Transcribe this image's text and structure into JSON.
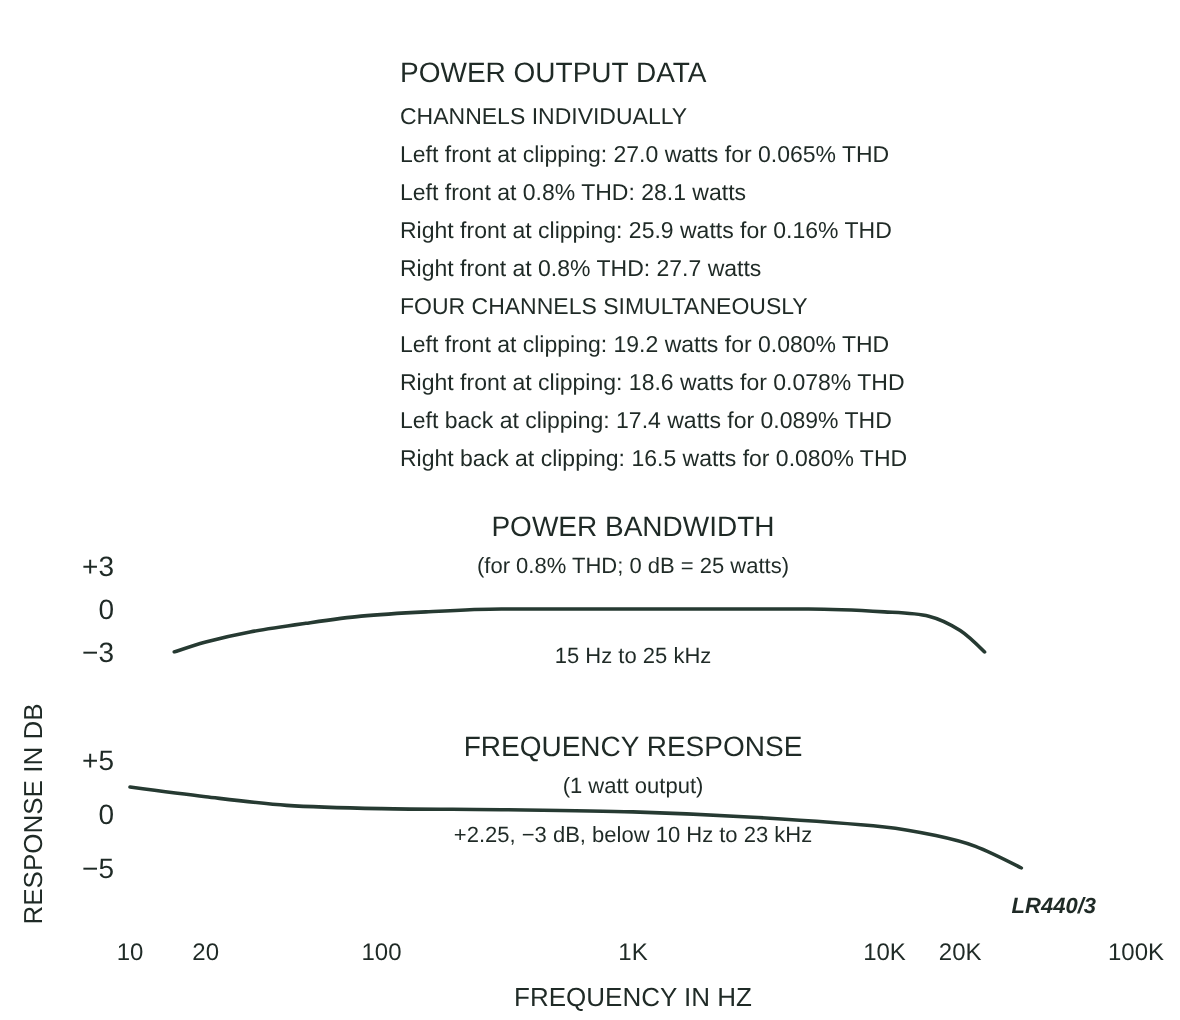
{
  "chart_data": [
    {
      "type": "other",
      "title": "POWER OUTPUT DATA",
      "annotations": [
        "CHANNELS INDIVIDUALLY",
        "Left front at clipping: 27.0 watts for 0.065% THD",
        "Left front at 0.8% THD: 28.1 watts",
        "Right front at clipping: 25.9 watts for 0.16% THD",
        "Right front at 0.8% THD: 27.7 watts",
        "FOUR CHANNELS SIMULTANEOUSLY",
        "Left front at clipping: 19.2 watts for 0.080% THD",
        "Right front at clipping: 18.6 watts for 0.078% THD",
        "Left back at clipping: 17.4 watts for 0.089% THD",
        "Right back at clipping: 16.5 watts for 0.080% THD"
      ]
    },
    {
      "type": "line",
      "title": "POWER BANDWIDTH",
      "subtitle": "(for 0.8% THD; 0 dB = 25 watts)",
      "annotations": [
        "15 Hz to 25 kHz"
      ],
      "log": "x",
      "xlim": [
        10,
        100000
      ],
      "ylim": [
        -3,
        3
      ],
      "yticks": [
        {
          "value": 3,
          "label": "+3"
        },
        0,
        {
          "value": -3,
          "label": "−3"
        }
      ],
      "tick_labels": "y",
      "grid": false,
      "marker": "none",
      "series": [
        {
          "color": "#263a32",
          "x": [
            15,
            20,
            30,
            50,
            83,
            150,
            300,
            1000,
            5000,
            10000,
            15000,
            20000,
            25000
          ],
          "values": [
            -3,
            -2.3,
            -1.6,
            -1,
            -0.5,
            -0.2,
            0,
            0,
            0,
            -0.2,
            -0.5,
            -1.5,
            -3
          ]
        }
      ]
    },
    {
      "type": "line",
      "title": "FREQUENCY RESPONSE",
      "subtitle": "(1 watt output)",
      "annotations": [
        "+2.25, −3 dB, below 10 Hz to 23 kHz",
        "LR440/3"
      ],
      "xlabel": "FREQUENCY IN HZ",
      "ylabel": "RESPONSE IN DB",
      "log": "x",
      "xlim": [
        10,
        100000
      ],
      "xticks": [
        10,
        20,
        100,
        {
          "value": 1000,
          "label": "1K"
        },
        {
          "value": 10000,
          "label": "10K"
        },
        {
          "value": 20000,
          "label": "20K"
        },
        {
          "value": 100000,
          "label": "100K"
        }
      ],
      "ylim": [
        -5,
        5
      ],
      "yticks": [
        {
          "value": 5,
          "label": "+5"
        },
        0,
        {
          "value": -5,
          "label": "−5"
        }
      ],
      "grid": false,
      "marker": "none",
      "series": [
        {
          "color": "#263a32",
          "x": [
            10,
            20,
            42,
            100,
            300,
            1000,
            3000,
            10000,
            16000,
            23000,
            35000
          ],
          "values": [
            2.5,
            1.6,
            0.8,
            0.5,
            0.4,
            0.2,
            -0.3,
            -1.2,
            -2,
            -3,
            -5
          ]
        }
      ]
    }
  ]
}
